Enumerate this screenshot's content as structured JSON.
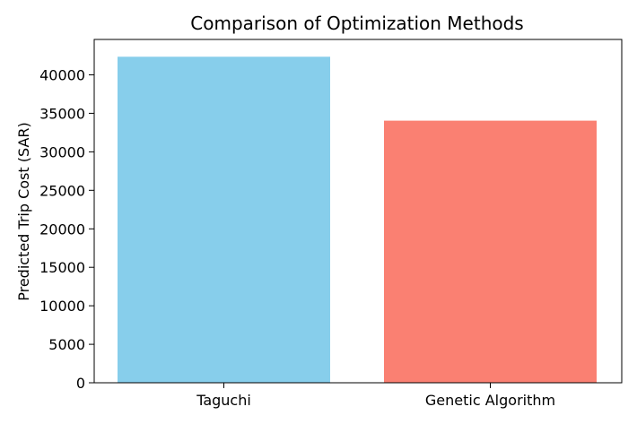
{
  "chart_data": {
    "type": "bar",
    "title": "Comparison of Optimization Methods",
    "xlabel": "",
    "ylabel": "Predicted Trip Cost (SAR)",
    "categories": [
      "Taguchi",
      "Genetic Algorithm"
    ],
    "values": [
      42350,
      34050
    ],
    "colors": [
      "#87CEEB",
      "#FA8072"
    ],
    "ylim": [
      0,
      44600
    ],
    "yticks": [
      0,
      5000,
      10000,
      15000,
      20000,
      25000,
      30000,
      35000,
      40000
    ],
    "grid": false,
    "legend": "none"
  }
}
